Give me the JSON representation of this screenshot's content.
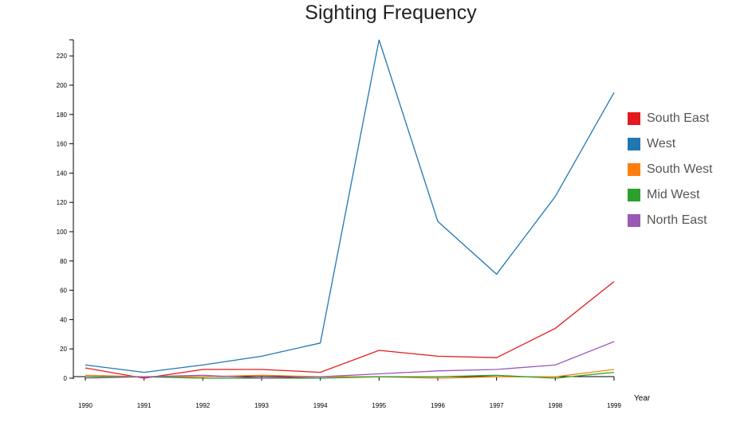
{
  "chart_data": {
    "type": "line",
    "title": "Sighting Frequency",
    "xlabel": "Year",
    "ylabel": "",
    "x": [
      "1990",
      "1991",
      "1992",
      "1993",
      "1994",
      "1995",
      "1996",
      "1997",
      "1998",
      "1999"
    ],
    "ylim": [
      0,
      230
    ],
    "yticks": [
      "0",
      "20",
      "40",
      "60",
      "80",
      "100",
      "120",
      "140",
      "160",
      "180",
      "200",
      "220"
    ],
    "grid": false,
    "legend_position": "right",
    "series": [
      {
        "name": "South East",
        "color": "#e41a1c",
        "values": [
          7,
          0,
          6,
          6,
          4,
          19,
          15,
          14,
          34,
          66
        ]
      },
      {
        "name": "West",
        "color": "#1f77b4",
        "values": [
          9,
          4,
          9,
          15,
          24,
          231,
          107,
          71,
          124,
          195
        ]
      },
      {
        "name": "South West",
        "color": "#ff7f0e",
        "values": [
          2,
          1,
          1,
          2,
          1,
          1,
          0,
          1,
          1,
          6
        ]
      },
      {
        "name": "Mid West",
        "color": "#2ca02c",
        "values": [
          1,
          1,
          0,
          0,
          0,
          1,
          1,
          2,
          0,
          4
        ]
      },
      {
        "name": "North East",
        "color": "#9b59b6",
        "values": [
          0,
          1,
          2,
          0,
          1,
          3,
          5,
          6,
          9,
          25
        ]
      }
    ]
  }
}
